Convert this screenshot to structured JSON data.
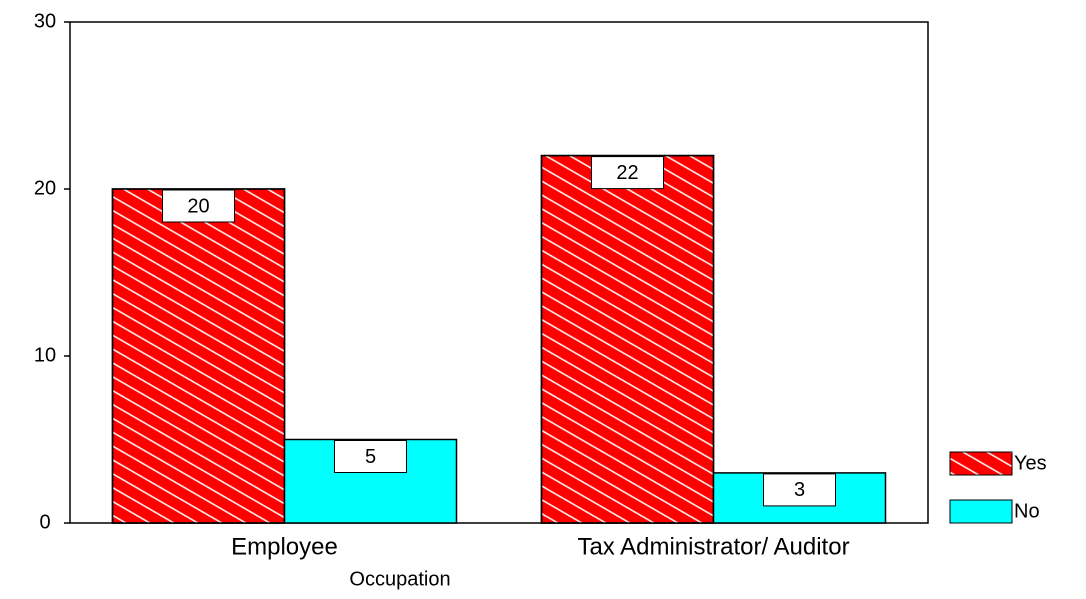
{
  "chart_data": {
    "type": "bar",
    "x_label": "Occupation",
    "categories": [
      "Employee",
      "Tax Administrator/ Auditor"
    ],
    "series": [
      {
        "name": "Yes",
        "color": "#ff0000",
        "values": [
          20,
          22
        ]
      },
      {
        "name": "No",
        "color": "#00ffff",
        "values": [
          5,
          3
        ]
      }
    ],
    "ylim": [
      0,
      30
    ],
    "yticks": [
      0,
      10,
      20,
      30
    ],
    "grid": false,
    "legend": "right"
  }
}
